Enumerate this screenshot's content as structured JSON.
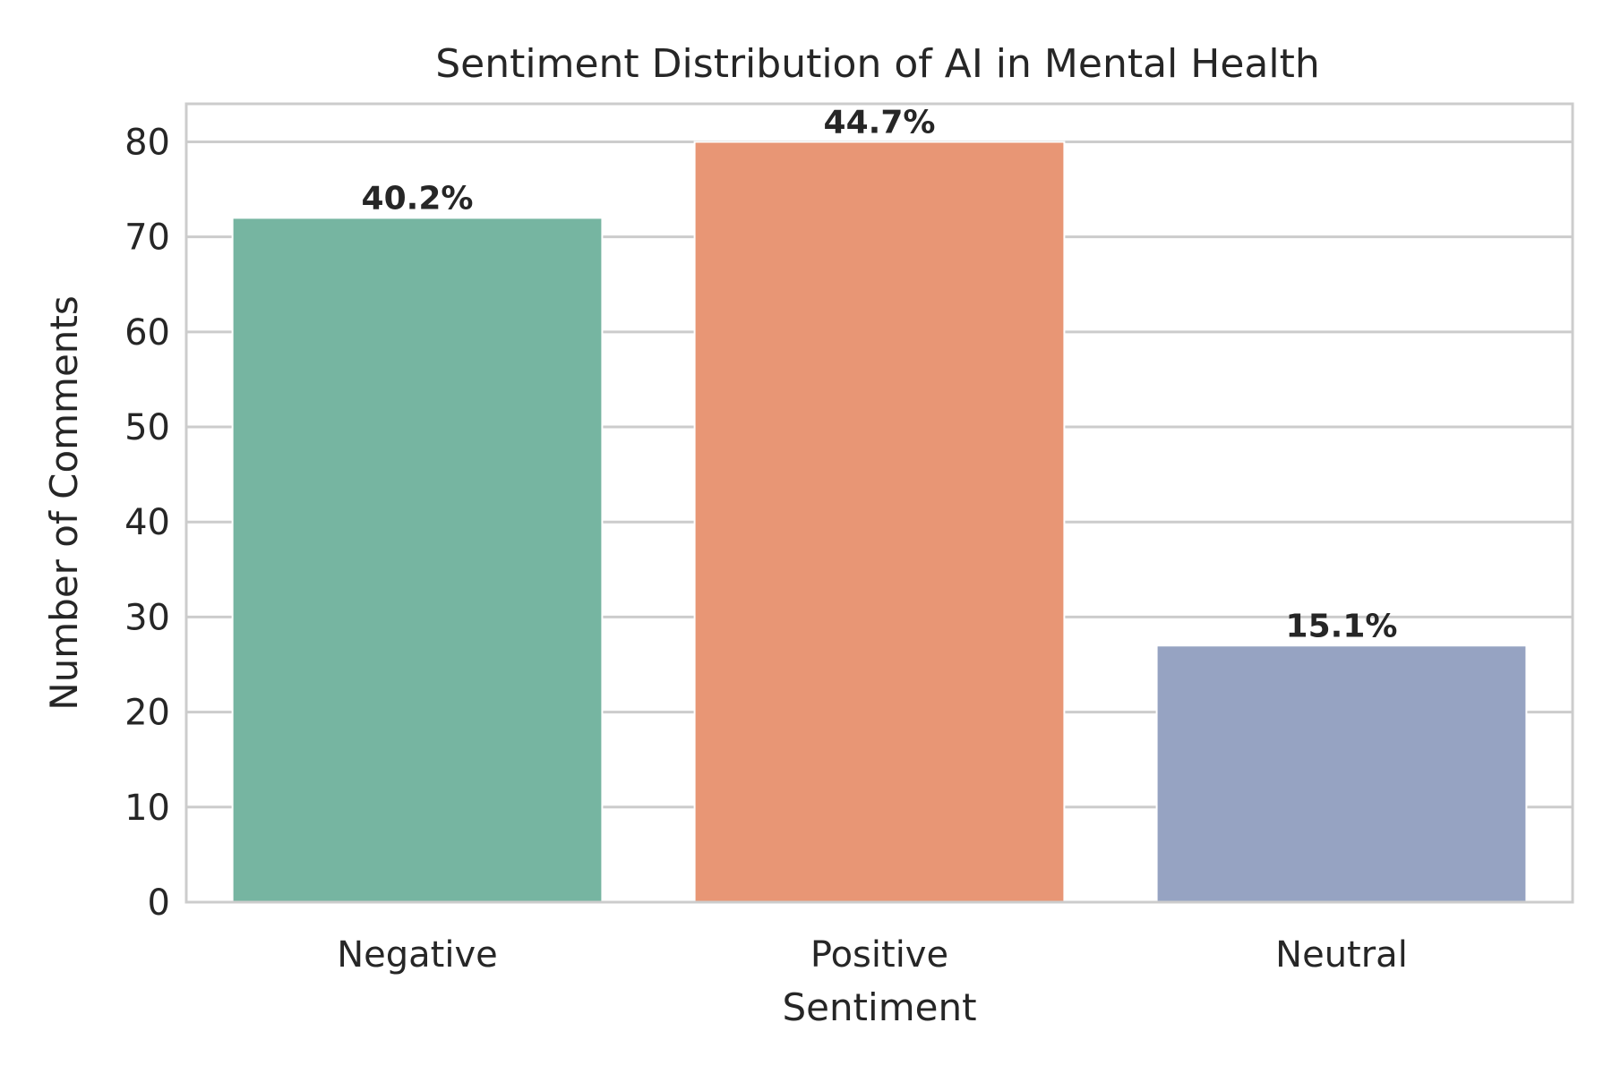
{
  "chart_data": {
    "type": "bar",
    "title": "Sentiment Distribution of AI in Mental Health",
    "xlabel": "Sentiment",
    "ylabel": "Number of Comments",
    "categories": [
      "Negative",
      "Positive",
      "Neutral"
    ],
    "values": [
      72,
      80,
      27
    ],
    "data_labels": [
      "40.2%",
      "44.7%",
      "15.1%"
    ],
    "colors": [
      "#76b5a1",
      "#e89675",
      "#96a3c2"
    ],
    "ylim": [
      0,
      84
    ],
    "yticks": [
      0,
      10,
      20,
      30,
      40,
      50,
      60,
      70,
      80
    ],
    "grid": true,
    "legend": "none"
  }
}
